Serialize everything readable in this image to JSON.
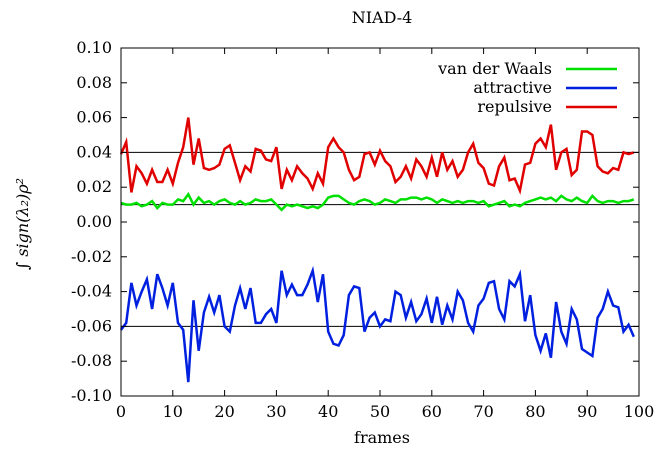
{
  "chart_data": {
    "type": "line",
    "title": "NIAD-4",
    "xlabel": "frames",
    "ylabel": "∫ sign(λ₂)ρ²",
    "xlim": [
      0,
      100
    ],
    "ylim": [
      -0.1,
      0.1
    ],
    "xticks": [
      "0",
      "10",
      "20",
      "30",
      "40",
      "50",
      "60",
      "70",
      "80",
      "90",
      "100"
    ],
    "yticks": [
      "0.10",
      "0.08",
      "0.06",
      "0.04",
      "0.02",
      "0.00",
      "-0.02",
      "-0.04",
      "-0.06",
      "-0.08",
      "-0.10"
    ],
    "reference_lines": [
      0.04,
      0.01,
      -0.06
    ],
    "legend_position": "top-right",
    "grid": false,
    "x": [
      0,
      1,
      2,
      3,
      4,
      5,
      6,
      7,
      8,
      9,
      10,
      11,
      12,
      13,
      14,
      15,
      16,
      17,
      18,
      19,
      20,
      21,
      22,
      23,
      24,
      25,
      26,
      27,
      28,
      29,
      30,
      31,
      32,
      33,
      34,
      35,
      36,
      37,
      38,
      39,
      40,
      41,
      42,
      43,
      44,
      45,
      46,
      47,
      48,
      49,
      50,
      51,
      52,
      53,
      54,
      55,
      56,
      57,
      58,
      59,
      60,
      61,
      62,
      63,
      64,
      65,
      66,
      67,
      68,
      69,
      70,
      71,
      72,
      73,
      74,
      75,
      76,
      77,
      78,
      79,
      80,
      81,
      82,
      83,
      84,
      85,
      86,
      87,
      88,
      89,
      90,
      91,
      92,
      93,
      94,
      95,
      96,
      97,
      98,
      99
    ],
    "series": [
      {
        "name": "van der Waals",
        "color": "#00e000",
        "values": [
          0.011,
          0.01,
          0.01,
          0.011,
          0.009,
          0.01,
          0.012,
          0.008,
          0.011,
          0.01,
          0.01,
          0.013,
          0.012,
          0.016,
          0.01,
          0.014,
          0.011,
          0.012,
          0.01,
          0.012,
          0.013,
          0.011,
          0.01,
          0.012,
          0.01,
          0.011,
          0.013,
          0.012,
          0.012,
          0.013,
          0.01,
          0.007,
          0.01,
          0.009,
          0.01,
          0.009,
          0.008,
          0.009,
          0.008,
          0.01,
          0.014,
          0.015,
          0.015,
          0.013,
          0.011,
          0.01,
          0.012,
          0.013,
          0.012,
          0.01,
          0.011,
          0.013,
          0.012,
          0.011,
          0.013,
          0.013,
          0.014,
          0.014,
          0.013,
          0.014,
          0.013,
          0.011,
          0.013,
          0.012,
          0.011,
          0.012,
          0.011,
          0.012,
          0.012,
          0.011,
          0.012,
          0.009,
          0.01,
          0.011,
          0.012,
          0.009,
          0.01,
          0.009,
          0.011,
          0.012,
          0.013,
          0.014,
          0.013,
          0.014,
          0.012,
          0.015,
          0.013,
          0.012,
          0.014,
          0.012,
          0.011,
          0.015,
          0.012,
          0.011,
          0.012,
          0.012,
          0.011,
          0.012,
          0.012,
          0.013
        ]
      },
      {
        "name": "attractive",
        "color": "#0020e0",
        "values": [
          -0.062,
          -0.058,
          -0.035,
          -0.048,
          -0.04,
          -0.033,
          -0.05,
          -0.03,
          -0.038,
          -0.048,
          -0.035,
          -0.058,
          -0.062,
          -0.092,
          -0.045,
          -0.074,
          -0.052,
          -0.043,
          -0.052,
          -0.042,
          -0.06,
          -0.063,
          -0.048,
          -0.038,
          -0.05,
          -0.038,
          -0.058,
          -0.058,
          -0.053,
          -0.05,
          -0.058,
          -0.028,
          -0.042,
          -0.036,
          -0.042,
          -0.042,
          -0.036,
          -0.028,
          -0.046,
          -0.03,
          -0.063,
          -0.07,
          -0.071,
          -0.065,
          -0.042,
          -0.037,
          -0.038,
          -0.063,
          -0.055,
          -0.052,
          -0.06,
          -0.056,
          -0.057,
          -0.04,
          -0.042,
          -0.055,
          -0.046,
          -0.057,
          -0.053,
          -0.044,
          -0.058,
          -0.043,
          -0.059,
          -0.048,
          -0.056,
          -0.04,
          -0.045,
          -0.058,
          -0.063,
          -0.048,
          -0.044,
          -0.035,
          -0.034,
          -0.05,
          -0.056,
          -0.034,
          -0.037,
          -0.03,
          -0.057,
          -0.042,
          -0.065,
          -0.074,
          -0.064,
          -0.078,
          -0.046,
          -0.063,
          -0.07,
          -0.05,
          -0.056,
          -0.073,
          -0.075,
          -0.077,
          -0.055,
          -0.05,
          -0.04,
          -0.048,
          -0.049,
          -0.063,
          -0.059,
          -0.066
        ]
      },
      {
        "name": "repulsive",
        "color": "#e00000",
        "values": [
          0.039,
          0.046,
          0.017,
          0.032,
          0.028,
          0.022,
          0.03,
          0.023,
          0.023,
          0.03,
          0.022,
          0.034,
          0.043,
          0.06,
          0.033,
          0.048,
          0.031,
          0.03,
          0.031,
          0.033,
          0.042,
          0.044,
          0.034,
          0.024,
          0.032,
          0.029,
          0.042,
          0.041,
          0.036,
          0.035,
          0.043,
          0.019,
          0.03,
          0.024,
          0.032,
          0.028,
          0.025,
          0.019,
          0.028,
          0.022,
          0.043,
          0.048,
          0.043,
          0.04,
          0.03,
          0.024,
          0.026,
          0.039,
          0.04,
          0.033,
          0.041,
          0.035,
          0.032,
          0.023,
          0.026,
          0.032,
          0.025,
          0.036,
          0.032,
          0.026,
          0.037,
          0.026,
          0.04,
          0.03,
          0.035,
          0.026,
          0.03,
          0.04,
          0.045,
          0.034,
          0.031,
          0.022,
          0.021,
          0.032,
          0.037,
          0.024,
          0.025,
          0.018,
          0.033,
          0.034,
          0.045,
          0.048,
          0.043,
          0.056,
          0.03,
          0.04,
          0.042,
          0.027,
          0.03,
          0.052,
          0.052,
          0.05,
          0.032,
          0.029,
          0.028,
          0.031,
          0.03,
          0.04,
          0.039,
          0.04
        ]
      }
    ]
  }
}
